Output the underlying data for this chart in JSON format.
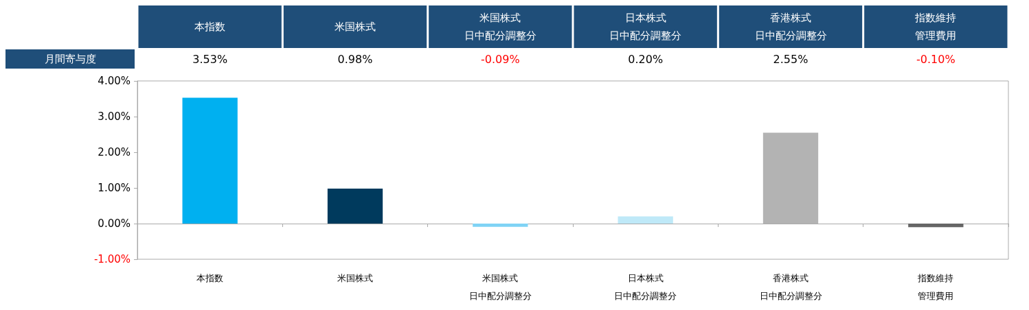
{
  "chart_data": {
    "type": "bar",
    "categories": [
      "本指数",
      "米国株式",
      "米国株式日中配分調整分",
      "日本株式日中配分調整分",
      "香港株式日中配分調整分",
      "指数維持管理費用"
    ],
    "series": [
      {
        "name": "月間寄与度",
        "values": [
          3.53,
          0.98,
          -0.09,
          0.2,
          2.55,
          -0.1
        ],
        "value_labels": [
          "3.53%",
          "0.98%",
          "-0.09%",
          "0.20%",
          "2.55%",
          "-0.10%"
        ],
        "colors": [
          "#00b0f0",
          "#003a5d",
          "#7fd3f5",
          "#bfe9f8",
          "#b3b3b3",
          "#666666"
        ]
      }
    ],
    "ylim": [
      -1,
      4
    ],
    "yticks": [
      {
        "value": -1,
        "label": "-1.00%"
      },
      {
        "value": 0,
        "label": "0.00%"
      },
      {
        "value": 1,
        "label": "1.00%"
      },
      {
        "value": 2,
        "label": "2.00%"
      },
      {
        "value": 3,
        "label": "3.00%"
      },
      {
        "value": 4,
        "label": "4.00%"
      }
    ]
  }
}
